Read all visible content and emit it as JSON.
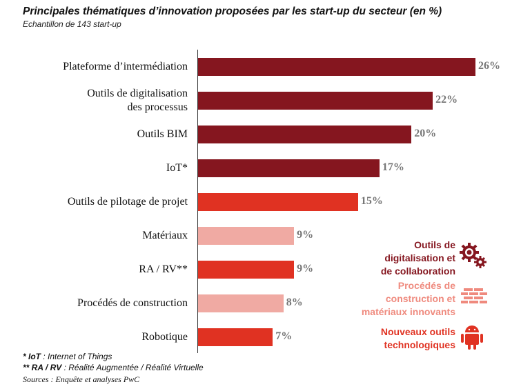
{
  "chart_data": {
    "type": "bar",
    "orientation": "horizontal",
    "title": "Principales thématiques d’innovation proposées par les start-up du secteur (en %)",
    "subtitle": "Echantillon de 143 start-up",
    "categories": [
      "Plateforme d’intermédiation",
      "Outils de digitalisation des processus",
      "Outils BIM",
      "IoT*",
      "Outils de pilotage de projet",
      "Matériaux",
      "RA / RV**",
      "Procédés de construction",
      "Robotique"
    ],
    "values": [
      26,
      22,
      20,
      17,
      15,
      9,
      9,
      8,
      7
    ],
    "value_labels": [
      "26%",
      "22%",
      "20%",
      "17%",
      "15%",
      "9%",
      "9%",
      "8%",
      "7%"
    ],
    "groups": [
      "digital",
      "digital",
      "digital",
      "digital",
      "tech",
      "materials",
      "tech",
      "materials",
      "tech"
    ],
    "xlim": [
      0,
      26
    ],
    "legend": [
      {
        "key": "digital",
        "label": "Outils de digitalisation et de collaboration",
        "color": "#85161f",
        "icon": "gears-icon"
      },
      {
        "key": "materials",
        "label": "Procédés de construction et matériaux innovants",
        "color": "#f0aaa3",
        "text_color": "#ef8a7e",
        "icon": "bricks-icon"
      },
      {
        "key": "tech",
        "label": "Nouveaux outils technologiques",
        "color": "#e03222",
        "icon": "android-icon"
      }
    ]
  },
  "footnotes": {
    "iot_key": "* IoT",
    "iot_text": " : Internet of Things",
    "ra_key": "** RA / RV",
    "ra_text": " : Réalité Augmentée / Réalité Virtuelle",
    "sources": "Sources : Enquête et analyses PwC"
  }
}
